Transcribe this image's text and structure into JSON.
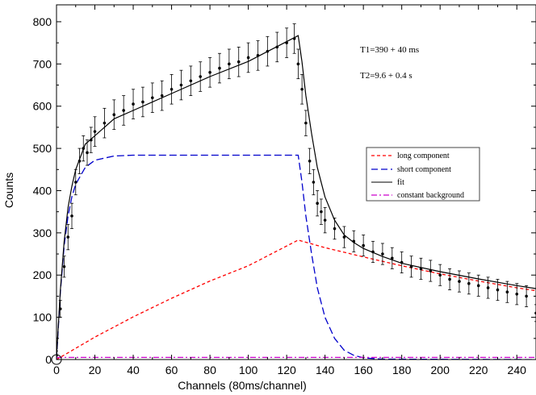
{
  "chart_data": {
    "type": "scatter",
    "title": "",
    "xlabel": "Channels (80ms/channel)",
    "ylabel": "Counts",
    "xlim": [
      0,
      250
    ],
    "ylim": [
      0,
      840
    ],
    "xticks": [
      0,
      20,
      40,
      60,
      80,
      100,
      120,
      140,
      160,
      180,
      200,
      220,
      240
    ],
    "yticks": [
      0,
      100,
      200,
      300,
      400,
      500,
      600,
      700,
      800
    ],
    "grid": false,
    "legend_position": "right",
    "annotations": [
      "T1=390 + 40 ms",
      "T2=9.6 + 0.4 s"
    ],
    "switch_channel": 126,
    "series": [
      {
        "name": "data",
        "style": "points with error bars",
        "color": "#000000",
        "x": [
          0,
          2,
          4,
          6,
          8,
          10,
          12,
          14,
          16,
          18,
          20,
          25,
          30,
          35,
          40,
          45,
          50,
          55,
          60,
          65,
          70,
          75,
          80,
          85,
          90,
          95,
          100,
          105,
          110,
          115,
          120,
          124,
          126,
          128,
          130,
          132,
          134,
          136,
          138,
          140,
          145,
          150,
          155,
          160,
          165,
          170,
          175,
          180,
          185,
          190,
          195,
          200,
          205,
          210,
          215,
          220,
          225,
          230,
          235,
          240,
          245,
          250
        ],
        "y": [
          10,
          120,
          220,
          290,
          340,
          420,
          470,
          500,
          490,
          520,
          540,
          560,
          580,
          590,
          605,
          610,
          620,
          625,
          640,
          650,
          660,
          670,
          680,
          690,
          700,
          705,
          715,
          720,
          730,
          740,
          750,
          760,
          700,
          640,
          560,
          470,
          420,
          370,
          350,
          330,
          310,
          290,
          280,
          270,
          255,
          250,
          240,
          230,
          220,
          215,
          210,
          200,
          190,
          185,
          180,
          175,
          170,
          165,
          160,
          155,
          150,
          110
        ],
        "error": [
          10,
          20,
          25,
          30,
          30,
          30,
          30,
          30,
          30,
          30,
          35,
          35,
          35,
          35,
          35,
          35,
          35,
          35,
          35,
          35,
          35,
          35,
          35,
          35,
          35,
          35,
          35,
          35,
          35,
          35,
          35,
          35,
          35,
          35,
          30,
          30,
          30,
          30,
          30,
          30,
          25,
          25,
          25,
          25,
          25,
          25,
          25,
          25,
          25,
          25,
          25,
          25,
          25,
          25,
          25,
          25,
          25,
          25,
          25,
          25,
          25,
          20
        ]
      },
      {
        "name": "long component",
        "style": "dashed",
        "color": "#ff0000",
        "x": [
          0,
          20,
          40,
          60,
          80,
          100,
          126,
          140,
          160,
          180,
          200,
          220,
          240,
          250
        ],
        "y": [
          0,
          53,
          101,
          145,
          186,
          222,
          283,
          265,
          243,
          222,
          203,
          186,
          170,
          163
        ]
      },
      {
        "name": "short component",
        "style": "dashed",
        "color": "#0000cc",
        "x": [
          0,
          2,
          4,
          6,
          8,
          10,
          15,
          20,
          30,
          40,
          60,
          80,
          100,
          126,
          128,
          130,
          133,
          136,
          140,
          145,
          150,
          155,
          160,
          170,
          250
        ],
        "y": [
          0,
          160,
          270,
          340,
          385,
          415,
          455,
          472,
          482,
          484,
          484,
          484,
          484,
          484,
          420,
          340,
          250,
          170,
          100,
          50,
          22,
          10,
          4,
          1,
          0
        ]
      },
      {
        "name": "fit",
        "style": "solid",
        "color": "#000000",
        "x": [
          0,
          2,
          4,
          6,
          8,
          10,
          15,
          20,
          30,
          40,
          60,
          80,
          100,
          126,
          128,
          130,
          133,
          136,
          140,
          145,
          150,
          155,
          160,
          170,
          180,
          200,
          220,
          240,
          250
        ],
        "y": [
          5,
          165,
          280,
          360,
          410,
          450,
          510,
          530,
          570,
          590,
          630,
          670,
          706,
          767,
          705,
          625,
          535,
          455,
          385,
          330,
          295,
          277,
          263,
          244,
          228,
          208,
          191,
          175,
          168
        ]
      },
      {
        "name": "constant background",
        "style": "dash-dot",
        "color": "#cc00cc",
        "x": [
          0,
          250
        ],
        "y": [
          5,
          5
        ]
      }
    ]
  }
}
